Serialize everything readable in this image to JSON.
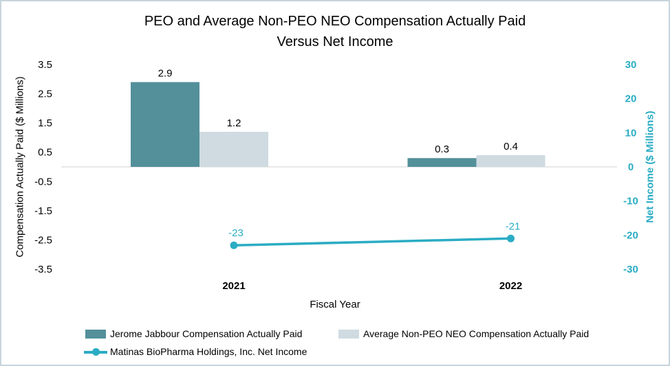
{
  "title": {
    "line1": "PEO and Average Non-PEO NEO Compensation Actually Paid",
    "line2": "Versus Net Income"
  },
  "chart_data": {
    "type": "combo-bar-line",
    "title": "PEO and Average Non-PEO NEO Compensation Actually Paid Versus Net Income",
    "categories": [
      "2021",
      "2022"
    ],
    "xlabel": "Fiscal Year",
    "series": [
      {
        "key": "peo",
        "name": "Jerome Jabbour Compensation Actually Paid",
        "type": "bar",
        "axis": "left",
        "color": "#53909A",
        "values": [
          2.9,
          0.3
        ],
        "labels": [
          "2.9",
          "0.3"
        ]
      },
      {
        "key": "neo",
        "name": "Average Non-PEO NEO Compensation Actually Paid",
        "type": "bar",
        "axis": "left",
        "color": "#CFDBE1",
        "values": [
          1.2,
          0.4
        ],
        "labels": [
          "1.2",
          "0.4"
        ]
      },
      {
        "key": "net",
        "name": "Matinas BioPharma Holdings, Inc. Net Income",
        "type": "line",
        "axis": "right",
        "color": "#2BACC4",
        "values": [
          -23,
          -21
        ],
        "labels": [
          "-23",
          "-21"
        ]
      }
    ],
    "left_axis": {
      "label": "Compensation Actually Paid ($ Millions)",
      "ticks": [
        "3.5",
        "2.5",
        "1.5",
        "0.5",
        "-0.5",
        "-1.5",
        "-2.5",
        "-3.5"
      ],
      "range": [
        -3.5,
        3.5
      ],
      "color": "#000000"
    },
    "right_axis": {
      "label": "Net Income ($ Millions)",
      "ticks": [
        "30",
        "20",
        "10",
        "0",
        "-10",
        "-20",
        "-30"
      ],
      "range": [
        -30,
        30
      ],
      "color": "#2BACC4"
    },
    "grid": "zero-line-only",
    "grid_color": "#D9D9D9",
    "legend_position": "bottom-left"
  }
}
